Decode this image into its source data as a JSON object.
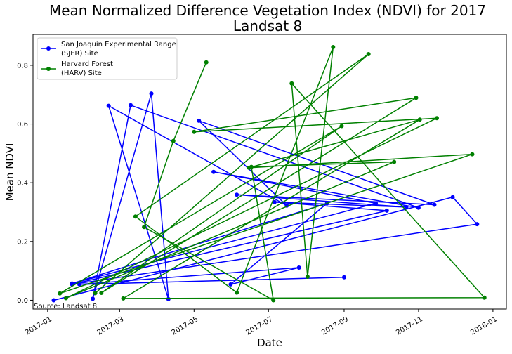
{
  "chart_data": {
    "type": "line",
    "title_line1": "Mean Normalized Difference Vegetation Index (NDVI) for 2017",
    "title_line2": "Landsat 8",
    "xlabel": "Date",
    "ylabel": "Mean NDVI",
    "source": "Source: Landsat 8",
    "xlim": [
      "2016-12-20",
      "2018-01-12"
    ],
    "ylim": [
      -0.03,
      0.905
    ],
    "x_ticks": [
      "2017-01",
      "2017-03",
      "2017-05",
      "2017-07",
      "2017-09",
      "2017-11",
      "2018-01"
    ],
    "y_ticks": [
      0.0,
      0.2,
      0.4,
      0.6,
      0.8
    ],
    "legend_position": "upper-left",
    "series": [
      {
        "name": "San Joaquin Experimental Range (SJER) Site",
        "legend_line1": "San Joaquin Experimental Range",
        "legend_line2": "(SJER) Site",
        "color": "#0000ff",
        "points": [
          {
            "x": "2017-01-06",
            "y": 0.0
          },
          {
            "x": "2017-11-29",
            "y": 0.351
          },
          {
            "x": "2017-12-19",
            "y": 0.259
          },
          {
            "x": "2017-01-21",
            "y": 0.054
          },
          {
            "x": "2017-10-06",
            "y": 0.305
          },
          {
            "x": "2017-07-06",
            "y": 0.334
          },
          {
            "x": "2017-10-22",
            "y": 0.317
          },
          {
            "x": "2017-06-05",
            "y": 0.359
          },
          {
            "x": "2017-11-14",
            "y": 0.325
          },
          {
            "x": "2017-05-05",
            "y": 0.611
          },
          {
            "x": "2017-07-16",
            "y": 0.322
          },
          {
            "x": "2017-02-20",
            "y": 0.662
          },
          {
            "x": "2017-04-10",
            "y": 0.004
          },
          {
            "x": "2017-03-27",
            "y": 0.704
          },
          {
            "x": "2017-02-07",
            "y": 0.005
          },
          {
            "x": "2017-03-10",
            "y": 0.664
          },
          {
            "x": "2017-11-01",
            "y": 0.315
          },
          {
            "x": "2017-05-17",
            "y": 0.437
          },
          {
            "x": "2017-09-27",
            "y": 0.33
          },
          {
            "x": "2017-01-21",
            "y": 0.057
          },
          {
            "x": "2017-08-18",
            "y": 0.33
          },
          {
            "x": "2017-05-31",
            "y": 0.054
          },
          {
            "x": "2017-07-26",
            "y": 0.111
          },
          {
            "x": "2017-01-27",
            "y": 0.054
          },
          {
            "x": "2017-09-01",
            "y": 0.078
          }
        ]
      },
      {
        "name": "Harvard Forest (HARV) Site",
        "legend_line1": "Harvard Forest",
        "legend_line2": "(HARV) Site",
        "color": "#008000",
        "points": [
          {
            "x": "2017-02-09",
            "y": 0.024
          },
          {
            "x": "2017-09-21",
            "y": 0.838
          },
          {
            "x": "2017-03-14",
            "y": 0.285
          },
          {
            "x": "2017-06-05",
            "y": 0.026
          },
          {
            "x": "2017-08-23",
            "y": 0.862
          },
          {
            "x": "2017-08-02",
            "y": 0.08
          },
          {
            "x": "2017-07-20",
            "y": 0.738
          },
          {
            "x": "2017-12-25",
            "y": 0.009
          },
          {
            "x": "2017-03-04",
            "y": 0.006
          },
          {
            "x": "2017-11-02",
            "y": 0.615
          },
          {
            "x": "2017-06-15",
            "y": 0.451
          },
          {
            "x": "2017-12-15",
            "y": 0.497
          },
          {
            "x": "2017-01-11",
            "y": 0.023
          },
          {
            "x": "2017-08-30",
            "y": 0.593
          },
          {
            "x": "2017-02-14",
            "y": 0.025
          },
          {
            "x": "2017-10-30",
            "y": 0.689
          },
          {
            "x": "2017-05-01",
            "y": 0.573
          },
          {
            "x": "2017-11-16",
            "y": 0.62
          },
          {
            "x": "2017-01-16",
            "y": 0.007
          },
          {
            "x": "2017-10-12",
            "y": 0.471
          },
          {
            "x": "2017-06-17",
            "y": 0.454
          },
          {
            "x": "2017-07-05",
            "y": 0.0
          },
          {
            "x": "2017-03-21",
            "y": 0.249
          },
          {
            "x": "2017-04-14",
            "y": 0.542
          },
          {
            "x": "2017-05-11",
            "y": 0.81
          }
        ]
      }
    ]
  }
}
